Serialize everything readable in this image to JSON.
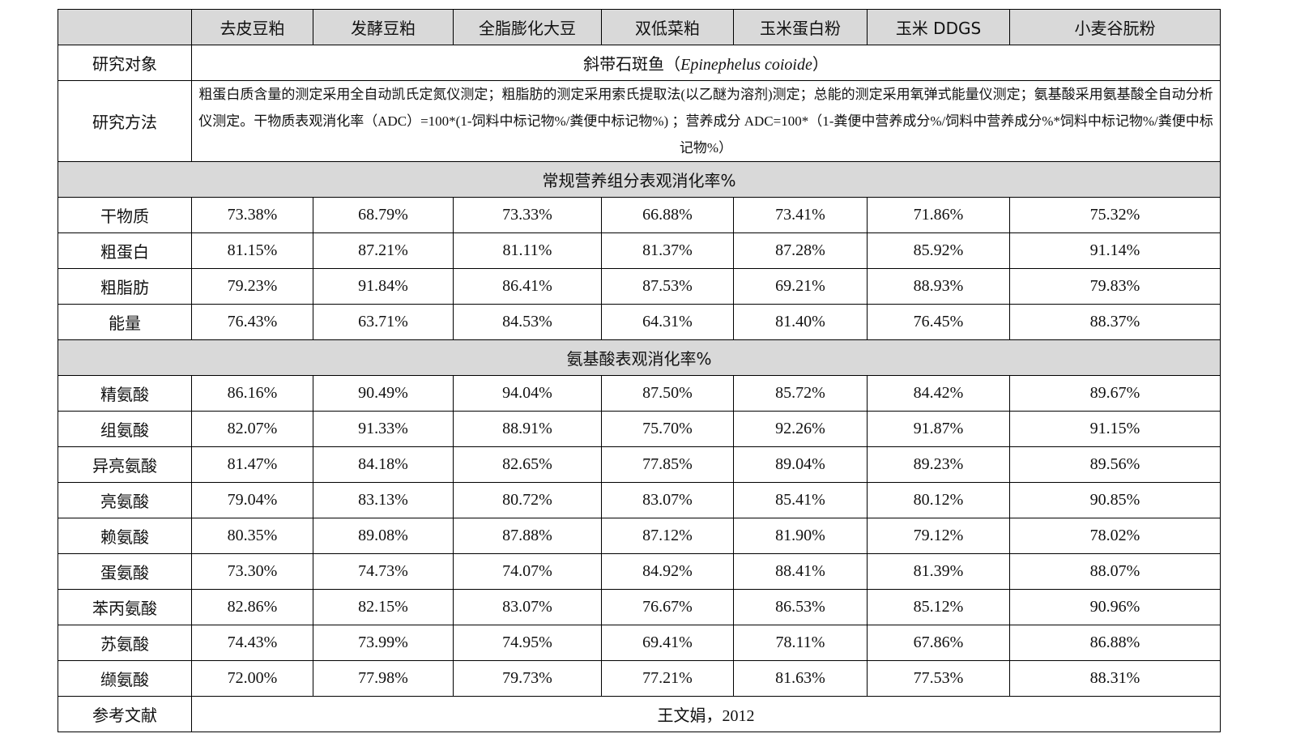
{
  "columns": [
    "去皮豆粕",
    "发酵豆粕",
    "全脂膨化大豆",
    "双低菜粕",
    "玉米蛋白粉",
    "玉米 DDGS",
    "小麦谷朊粉"
  ],
  "subject": {
    "label": "研究对象",
    "text_cn": "斜带石斑鱼（",
    "text_latin": "Epinephelus coioide",
    "text_end": "）"
  },
  "method": {
    "label": "研究方法",
    "text": "粗蛋白质含量的测定采用全自动凯氏定氮仪测定；粗脂肪的测定采用索氏提取法(以乙醚为溶剂)测定；总能的测定采用氧弹式能量仪测定；氨基酸采用氨基酸全自动分析仪测定。干物质表观消化率（ADC）=100*(1-饲料中标记物%/粪便中标记物%) ；营养成分 ADC=100*（1-粪便中营养成分%/饲料中营养成分%*饲料中标记物%/粪便中标记物%）"
  },
  "sections": [
    {
      "title": "常规营养组分表观消化率%",
      "rows": [
        {
          "label": "干物质",
          "values": [
            "73.38%",
            "68.79%",
            "73.33%",
            "66.88%",
            "73.41%",
            "71.86%",
            "75.32%"
          ]
        },
        {
          "label": "粗蛋白",
          "values": [
            "81.15%",
            "87.21%",
            "81.11%",
            "81.37%",
            "87.28%",
            "85.92%",
            "91.14%"
          ]
        },
        {
          "label": "粗脂肪",
          "values": [
            "79.23%",
            "91.84%",
            "86.41%",
            "87.53%",
            "69.21%",
            "88.93%",
            "79.83%"
          ]
        },
        {
          "label": "能量",
          "values": [
            "76.43%",
            "63.71%",
            "84.53%",
            "64.31%",
            "81.40%",
            "76.45%",
            "88.37%"
          ]
        }
      ]
    },
    {
      "title": "氨基酸表观消化率%",
      "rows": [
        {
          "label": "精氨酸",
          "values": [
            "86.16%",
            "90.49%",
            "94.04%",
            "87.50%",
            "85.72%",
            "84.42%",
            "89.67%"
          ]
        },
        {
          "label": "组氨酸",
          "values": [
            "82.07%",
            "91.33%",
            "88.91%",
            "75.70%",
            "92.26%",
            "91.87%",
            "91.15%"
          ]
        },
        {
          "label": "异亮氨酸",
          "values": [
            "81.47%",
            "84.18%",
            "82.65%",
            "77.85%",
            "89.04%",
            "89.23%",
            "89.56%"
          ]
        },
        {
          "label": "亮氨酸",
          "values": [
            "79.04%",
            "83.13%",
            "80.72%",
            "83.07%",
            "85.41%",
            "80.12%",
            "90.85%"
          ]
        },
        {
          "label": "赖氨酸",
          "values": [
            "80.35%",
            "89.08%",
            "87.88%",
            "87.12%",
            "81.90%",
            "79.12%",
            "78.02%"
          ]
        },
        {
          "label": "蛋氨酸",
          "values": [
            "73.30%",
            "74.73%",
            "74.07%",
            "84.92%",
            "88.41%",
            "81.39%",
            "88.07%"
          ]
        },
        {
          "label": "苯丙氨酸",
          "values": [
            "82.86%",
            "82.15%",
            "83.07%",
            "76.67%",
            "86.53%",
            "85.12%",
            "90.96%"
          ]
        },
        {
          "label": "苏氨酸",
          "values": [
            "74.43%",
            "73.99%",
            "74.95%",
            "69.41%",
            "78.11%",
            "67.86%",
            "86.88%"
          ]
        },
        {
          "label": "缬氨酸",
          "values": [
            "72.00%",
            "77.98%",
            "79.73%",
            "77.21%",
            "81.63%",
            "77.53%",
            "88.31%"
          ]
        }
      ]
    }
  ],
  "reference": {
    "label": "参考文献",
    "text": "王文娟，2012"
  }
}
